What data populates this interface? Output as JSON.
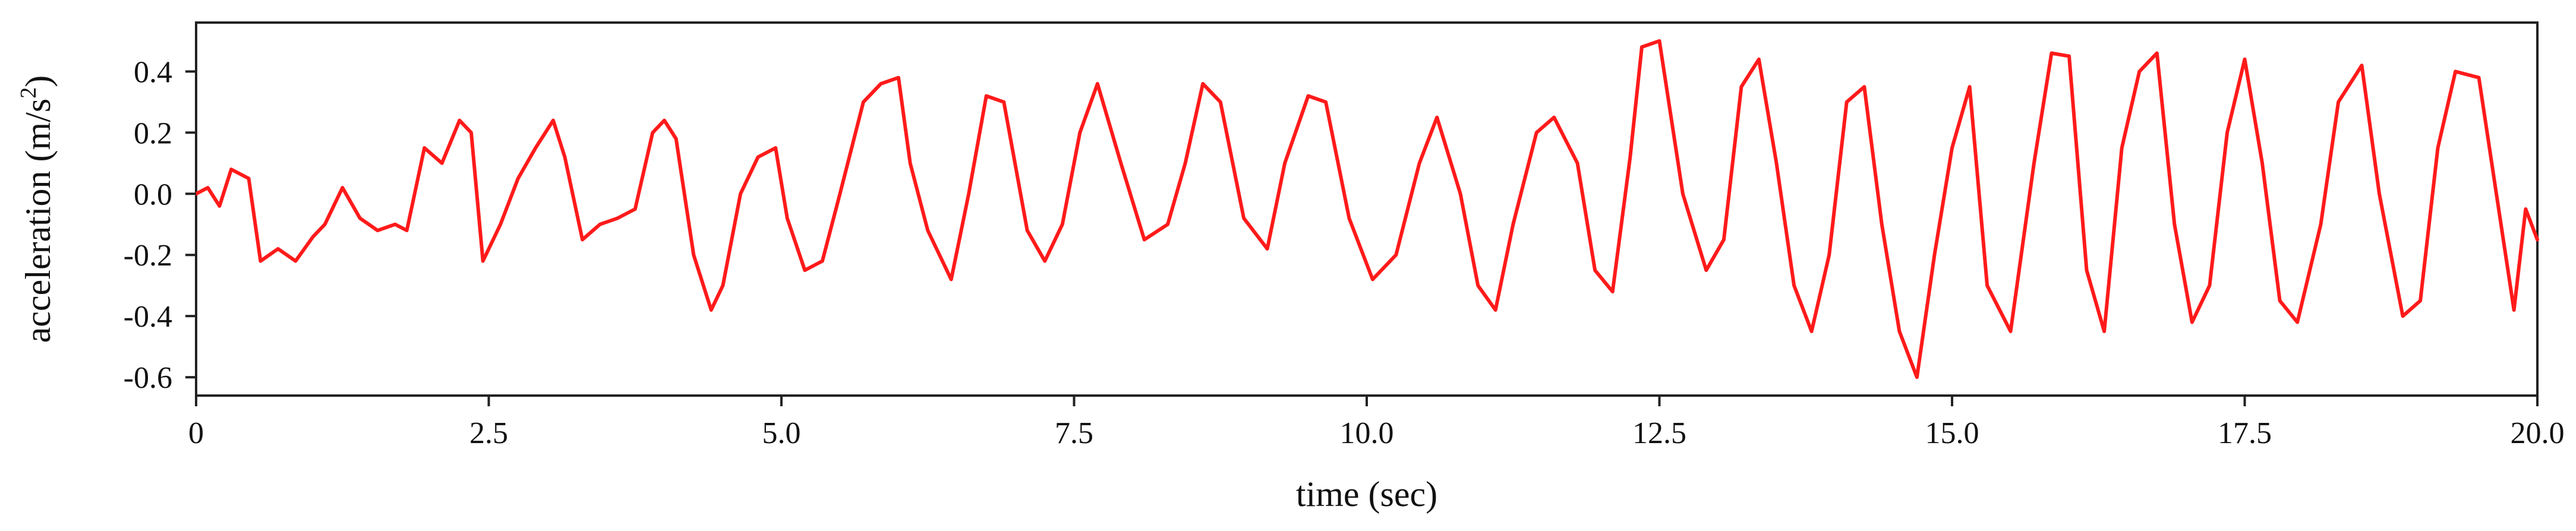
{
  "chart_data": {
    "type": "line",
    "title": "",
    "xlabel": "time (sec)",
    "ylabel": "acceleration (m/s2)",
    "ylabel_parts": {
      "text": "acceleration (m/s",
      "sup": "2",
      "close": ")"
    },
    "xlim": [
      0,
      20
    ],
    "ylim": [
      -0.66,
      0.56
    ],
    "x_ticks": [
      0,
      2.5,
      5.0,
      7.5,
      10.0,
      12.5,
      15.0,
      17.5,
      20.0
    ],
    "x_tick_labels": [
      "0",
      "2.5",
      "5.0",
      "7.5",
      "10.0",
      "12.5",
      "15.0",
      "17.5",
      "20.0"
    ],
    "y_ticks": [
      0.4,
      0.2,
      0.0,
      -0.2,
      -0.4,
      -0.6
    ],
    "y_tick_labels": [
      "0.4",
      "0.2",
      "0.0",
      "-0.2",
      "-0.4",
      "-0.6"
    ],
    "grid": false,
    "legend": "none",
    "colors": {
      "series": "#ff1a1a",
      "axis": "#222222"
    },
    "series": [
      {
        "x": [
          0,
          0.1,
          0.2,
          0.3,
          0.45,
          0.55,
          0.7,
          0.85,
          1.0,
          1.1,
          1.25,
          1.4,
          1.55,
          1.7,
          1.8,
          1.95,
          2.1,
          2.25,
          2.35,
          2.45,
          2.6,
          2.75,
          2.9,
          3.05,
          3.15,
          3.3,
          3.45,
          3.6,
          3.75,
          3.9,
          4.0,
          4.1,
          4.25,
          4.4,
          4.5,
          4.65,
          4.8,
          4.95,
          5.05,
          5.2,
          5.35,
          5.5,
          5.7,
          5.85,
          6.0,
          6.1,
          6.25,
          6.45,
          6.6,
          6.75,
          6.9,
          7.1,
          7.25,
          7.4,
          7.55,
          7.7,
          7.9,
          8.1,
          8.3,
          8.45,
          8.6,
          8.75,
          8.95,
          9.15,
          9.3,
          9.5,
          9.65,
          9.85,
          10.05,
          10.25,
          10.45,
          10.6,
          10.8,
          10.95,
          11.1,
          11.25,
          11.45,
          11.6,
          11.8,
          11.95,
          12.1,
          12.25,
          12.35,
          12.5,
          12.7,
          12.9,
          13.05,
          13.2,
          13.35,
          13.5,
          13.65,
          13.8,
          13.95,
          14.1,
          14.25,
          14.4,
          14.55,
          14.7,
          14.85,
          15.0,
          15.15,
          15.3,
          15.5,
          15.7,
          15.85,
          16.0,
          16.15,
          16.3,
          16.45,
          16.6,
          16.75,
          16.9,
          17.05,
          17.2,
          17.35,
          17.5,
          17.65,
          17.8,
          17.95,
          18.15,
          18.3,
          18.5,
          18.65,
          18.85,
          19.0,
          19.15,
          19.3,
          19.5,
          19.65,
          19.8,
          19.9,
          20.0
        ],
        "y": [
          0.0,
          0.02,
          -0.04,
          0.08,
          0.05,
          -0.22,
          -0.18,
          -0.22,
          -0.14,
          -0.1,
          0.02,
          -0.08,
          -0.12,
          -0.1,
          -0.12,
          0.15,
          0.1,
          0.24,
          0.2,
          -0.22,
          -0.1,
          0.05,
          0.15,
          0.24,
          0.12,
          -0.15,
          -0.1,
          -0.08,
          -0.05,
          0.2,
          0.24,
          0.18,
          -0.2,
          -0.38,
          -0.3,
          0.0,
          0.12,
          0.15,
          -0.08,
          -0.25,
          -0.22,
          0.0,
          0.3,
          0.36,
          0.38,
          0.1,
          -0.12,
          -0.28,
          0.0,
          0.32,
          0.3,
          -0.12,
          -0.22,
          -0.1,
          0.2,
          0.36,
          0.1,
          -0.15,
          -0.1,
          0.1,
          0.36,
          0.3,
          -0.08,
          -0.18,
          0.1,
          0.32,
          0.3,
          -0.08,
          -0.28,
          -0.2,
          0.1,
          0.25,
          0.0,
          -0.3,
          -0.38,
          -0.1,
          0.2,
          0.25,
          0.1,
          -0.25,
          -0.32,
          0.12,
          0.48,
          0.5,
          0.0,
          -0.25,
          -0.15,
          0.35,
          0.44,
          0.1,
          -0.3,
          -0.45,
          -0.2,
          0.3,
          0.35,
          -0.1,
          -0.45,
          -0.6,
          -0.2,
          0.15,
          0.35,
          -0.3,
          -0.45,
          0.1,
          0.46,
          0.45,
          -0.25,
          -0.45,
          0.15,
          0.4,
          0.46,
          -0.1,
          -0.42,
          -0.3,
          0.2,
          0.44,
          0.1,
          -0.35,
          -0.42,
          -0.1,
          0.3,
          0.42,
          0.0,
          -0.4,
          -0.35,
          0.15,
          0.4,
          0.38,
          0.0,
          -0.38,
          -0.05,
          -0.15
        ],
        "color": "#ff1a1a"
      }
    ]
  }
}
